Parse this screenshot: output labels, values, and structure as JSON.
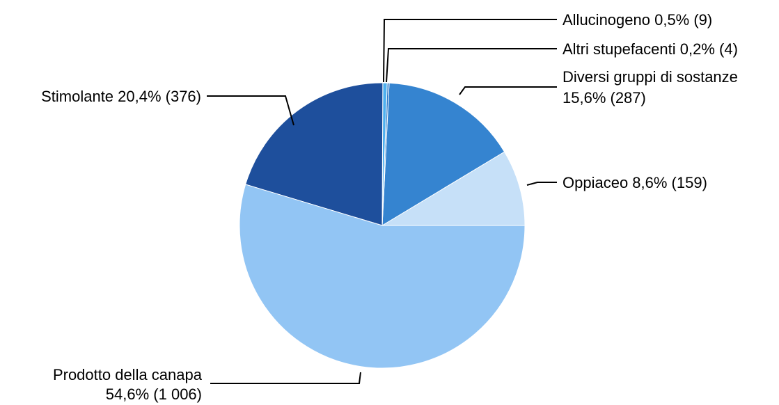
{
  "chart_data": {
    "type": "pie",
    "title": "",
    "start_angle_deg": 0,
    "direction": "counterclockwise",
    "slices": [
      {
        "name": "Oppiaceo",
        "value": 159,
        "percent": "8,6%",
        "color": "#c6e0f8",
        "label_lines": [
          "Oppiaceo 8,6% (159)"
        ]
      },
      {
        "name": "Diversi gruppi di sostanze",
        "value": 287,
        "percent": "15,6%",
        "color": "#3584d0",
        "label_lines": [
          "Diversi gruppi di sostanze",
          "15,6% (287)"
        ]
      },
      {
        "name": "Altri stupefacenti",
        "value": 4,
        "percent": "0,2%",
        "color": "#2b74c4",
        "label_lines": [
          "Altri stupefacenti 0,2% (4)"
        ]
      },
      {
        "name": "Allucinogeno",
        "value": 9,
        "percent": "0,5%",
        "color": "#4fb0ef",
        "label_lines": [
          "Allucinogeno 0,5% (9)"
        ]
      },
      {
        "name": "Stimolante",
        "value": 376,
        "percent": "20,4%",
        "color": "#1e4f9c",
        "label_lines": [
          "Stimolante 20,4% (376)"
        ]
      },
      {
        "name": "Prodotto della canapa",
        "value": 1006,
        "percent": "54,6%",
        "color": "#92c5f4",
        "label_lines": [
          "Prodotto della canapa",
          "54,6% (1 006)"
        ]
      }
    ]
  }
}
